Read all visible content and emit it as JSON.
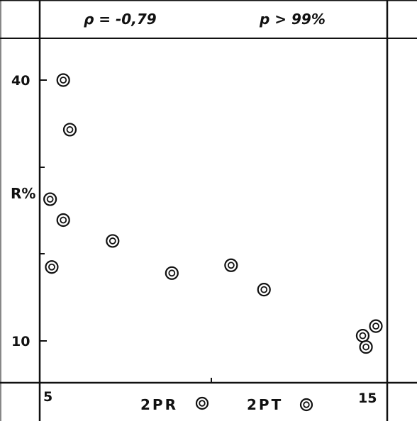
{
  "header": {
    "rho": "ρ = -0,79",
    "p": "p > 99%"
  },
  "chart_data": {
    "type": "scatter",
    "xlabel": "",
    "ylabel": "R%",
    "xlim": [
      5,
      15
    ],
    "ylim": [
      10,
      40
    ],
    "x_ticks": [
      "5",
      "15"
    ],
    "y_ticks": [
      "40",
      "10"
    ],
    "grid": false,
    "legend": [
      {
        "label": "2PR",
        "marker": "double-circle"
      },
      {
        "label": "2PT",
        "marker": "double-circle"
      }
    ],
    "series": [
      {
        "marker": "double-circle",
        "x": [
          5.5,
          5.7,
          5.1,
          5.5,
          5.15,
          7.0,
          8.8,
          10.6,
          11.6,
          14.6,
          14.7,
          15.0
        ],
        "y": [
          40.0,
          34.3,
          26.3,
          23.9,
          18.5,
          21.5,
          17.8,
          18.7,
          15.9,
          10.6,
          9.3,
          11.7
        ]
      }
    ],
    "colors": {
      "ink": "#111111",
      "background": "#ffffff"
    }
  }
}
